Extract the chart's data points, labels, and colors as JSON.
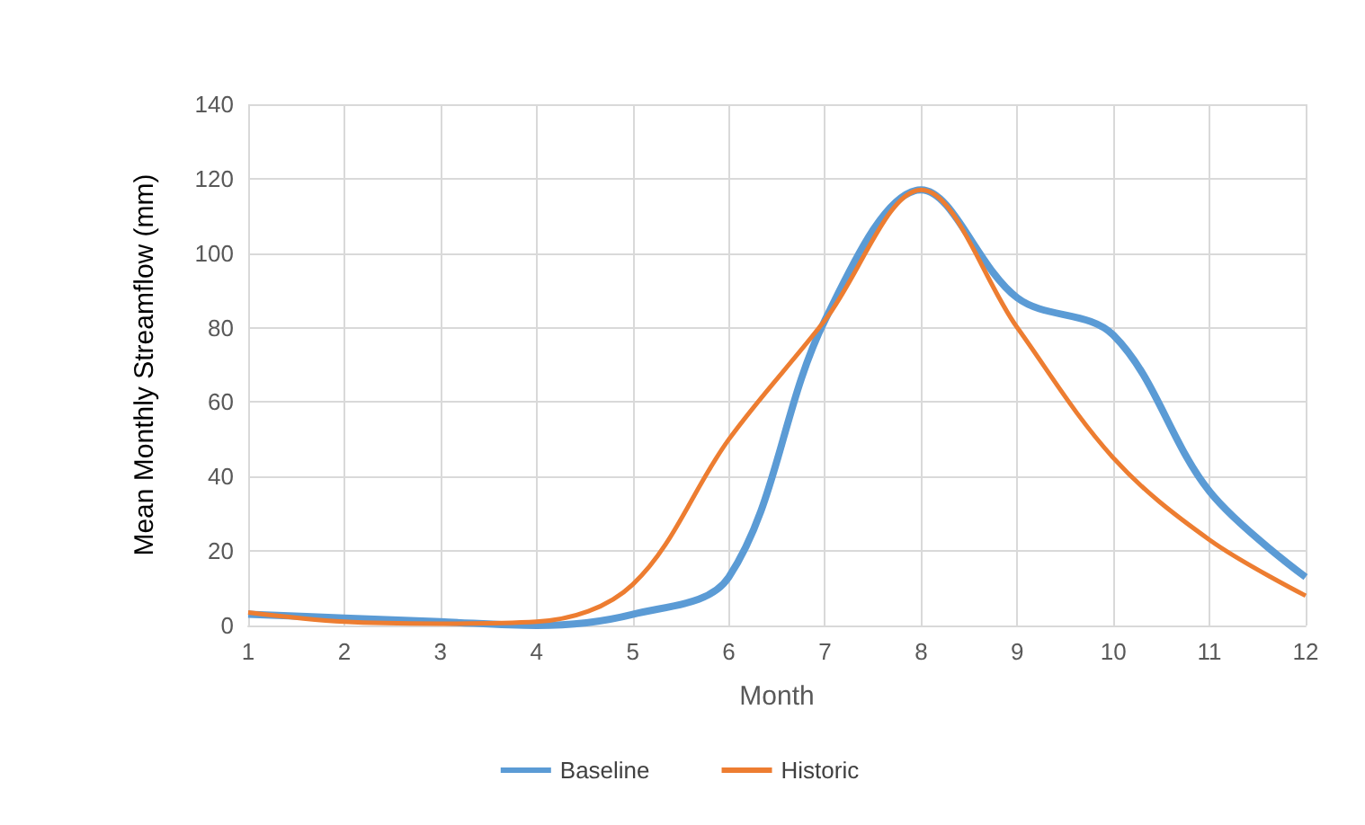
{
  "chart_data": {
    "type": "line",
    "xlabel": "Month",
    "ylabel": "Mean Monthly Streamflow (mm)",
    "x": [
      1,
      2,
      3,
      4,
      5,
      6,
      7,
      8,
      9,
      10,
      11,
      12
    ],
    "series": [
      {
        "name": "Baseline",
        "color": "#5b9bd5",
        "values": [
          3,
          2,
          1,
          0,
          3,
          13,
          82,
          117,
          88,
          78,
          36,
          13
        ]
      },
      {
        "name": "Historic",
        "color": "#ed7d31",
        "values": [
          3.5,
          1,
          0.5,
          1,
          11,
          50,
          82,
          117,
          80,
          45,
          23,
          8
        ]
      }
    ],
    "xlim": [
      1,
      12
    ],
    "xticks": [
      1,
      2,
      3,
      4,
      5,
      6,
      7,
      8,
      9,
      10,
      11,
      12
    ],
    "ylim": [
      0,
      140
    ],
    "yticks": [
      0,
      20,
      40,
      60,
      80,
      100,
      120,
      140
    ],
    "grid": true,
    "legend": "bottom",
    "marker": "none",
    "line_style": "solid"
  }
}
